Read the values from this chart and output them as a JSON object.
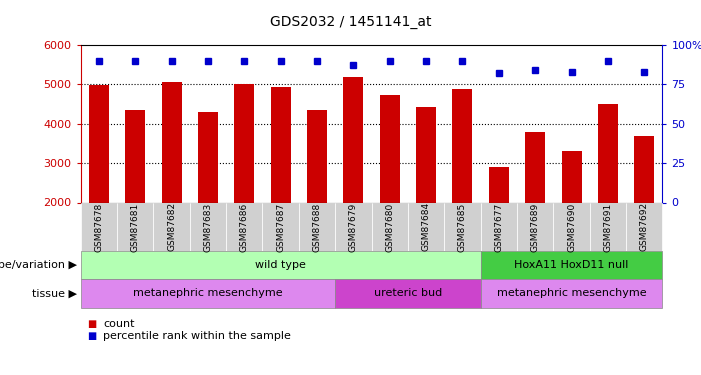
{
  "title": "GDS2032 / 1451141_at",
  "samples": [
    "GSM87678",
    "GSM87681",
    "GSM87682",
    "GSM87683",
    "GSM87686",
    "GSM87687",
    "GSM87688",
    "GSM87679",
    "GSM87680",
    "GSM87684",
    "GSM87685",
    "GSM87677",
    "GSM87689",
    "GSM87690",
    "GSM87691",
    "GSM87692"
  ],
  "counts": [
    4980,
    4360,
    5050,
    4290,
    5020,
    4940,
    4340,
    5190,
    4720,
    4430,
    4870,
    2890,
    3780,
    3300,
    4490,
    3680
  ],
  "percentile_ranks": [
    90,
    90,
    90,
    90,
    90,
    90,
    90,
    87,
    90,
    90,
    90,
    82,
    84,
    83,
    90,
    83
  ],
  "ylim_left": [
    2000,
    6000
  ],
  "ylim_right": [
    0,
    100
  ],
  "left_yticks": [
    2000,
    3000,
    4000,
    5000,
    6000
  ],
  "right_yticks": [
    0,
    25,
    50,
    75,
    100
  ],
  "bar_color": "#cc0000",
  "dot_color": "#0000cc",
  "bar_bottom": 2000,
  "genotype_groups": [
    {
      "label": "wild type",
      "start": 0,
      "end": 11,
      "color": "#b3ffb3"
    },
    {
      "label": "HoxA11 HoxD11 null",
      "start": 11,
      "end": 16,
      "color": "#44cc44"
    }
  ],
  "tissue_groups": [
    {
      "label": "metanephric mesenchyme",
      "start": 0,
      "end": 7,
      "color": "#dd88ee"
    },
    {
      "label": "ureteric bud",
      "start": 7,
      "end": 11,
      "color": "#cc44cc"
    },
    {
      "label": "metanephric mesenchyme",
      "start": 11,
      "end": 16,
      "color": "#dd88ee"
    }
  ],
  "legend_count_color": "#cc0000",
  "legend_dot_color": "#0000cc",
  "bg_color": "#ffffff",
  "label_row1": "genotype/variation",
  "label_row2": "tissue",
  "legend1": "count",
  "legend2": "percentile rank within the sample"
}
